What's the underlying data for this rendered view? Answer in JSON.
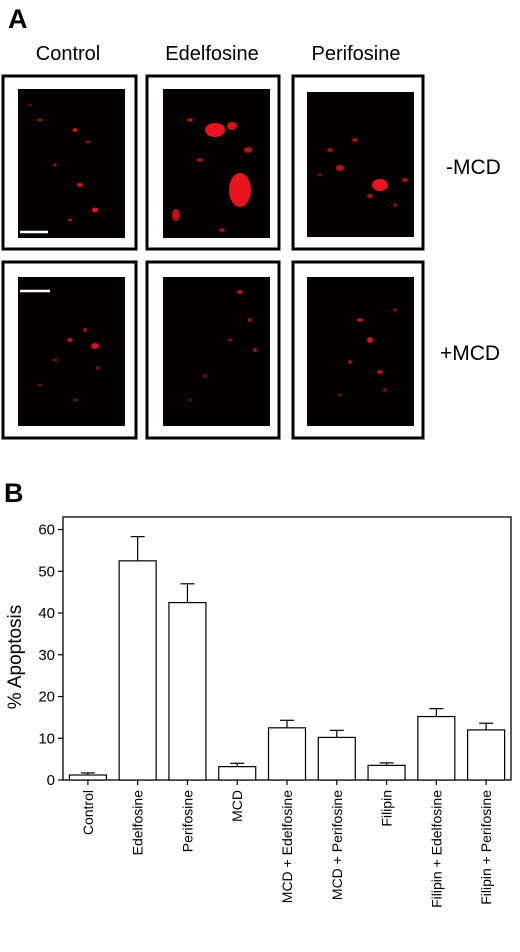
{
  "panel_a": {
    "letter": "A",
    "columns": [
      "Control",
      "Edelfosine",
      "Perifosine"
    ],
    "rows": [
      "-MCD",
      "+MCD"
    ],
    "colors": {
      "frame": "#000000",
      "image_bg": "#050000",
      "signal": "#e8141e"
    }
  },
  "panel_b": {
    "letter": "B"
  },
  "chart_data": {
    "type": "bar",
    "categories": [
      "Control",
      "Edelfosine",
      "Perifosine",
      "MCD",
      "MCD + Edelfosine",
      "MCD + Perifosine",
      "Filipin",
      "Filipin + Edelfosine",
      "Filipin + Perifosine"
    ],
    "values": [
      1.2,
      52.5,
      42.5,
      3.2,
      12.5,
      10.2,
      3.5,
      15.2,
      12.0
    ],
    "errors": [
      0.5,
      5.8,
      4.5,
      0.8,
      1.8,
      1.7,
      0.6,
      1.9,
      1.6
    ],
    "ylabel": "% Apoptosis",
    "ylim": [
      0,
      63
    ],
    "yticks": [
      0,
      10,
      20,
      30,
      40,
      50,
      60
    ],
    "grid": false,
    "bar_fill": "#ffffff",
    "bar_stroke": "#000000"
  }
}
